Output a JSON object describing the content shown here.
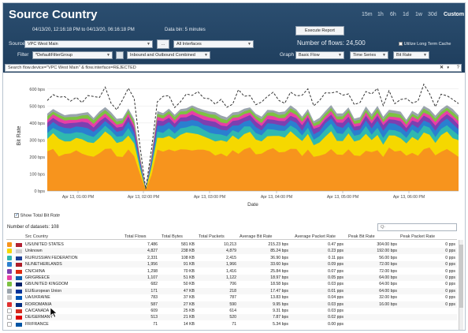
{
  "header": {
    "title": "Source Country",
    "date_range": "04/13/20, 12:16:18 PM to 04/13/20, 06:16:18 PM",
    "data_bin": "Data bin: 5 minutes",
    "time_ranges": [
      "15m",
      "1h",
      "6h",
      "1d",
      "1w",
      "30d",
      "Custom"
    ],
    "selected_time_range": "Custom",
    "execute_label": "Execute Report",
    "source_label": "Source",
    "source_value": "VPC West Main",
    "more_label": "...",
    "interfaces_value": "All Interfaces",
    "filter_label": "Filter",
    "filter_value": "*DefaultFilterGroup",
    "direction_value": "Inbound and Outbound Combined",
    "flows_label": "Number of flows: 24,500",
    "utilize_label": "Utilize Long Term Cache",
    "graph_label": "Graph",
    "graph_type": "Basic Flow",
    "graph_mode": "Time Series",
    "graph_metric": "Bit Rate",
    "search_text": "Search  flow.device=\"VPC West Main\" & flow.interface=REJECTED",
    "clear_icon": "close-icon",
    "help_label": "?"
  },
  "chart_data": {
    "type": "area",
    "ylabel": "Bit Rate",
    "xlabel": "Date",
    "y_ticks": [
      "0 bps",
      "100 bps",
      "200 bps",
      "300 bps",
      "400 bps",
      "500 bps",
      "600 bps"
    ],
    "ylim": [
      0,
      650
    ],
    "x_ticks": [
      "Apr 13, 01:00 PM",
      "Apr 13, 02:00 PM",
      "Apr 13, 03:00 PM",
      "Apr 13, 04:00 PM",
      "Apr 13, 05:00 PM",
      "Apr 13, 06:00 PM"
    ],
    "series": [
      {
        "name": "Orange",
        "color": "#f7941d"
      },
      {
        "name": "Yellow",
        "color": "#f5d800"
      },
      {
        "name": "Teal",
        "color": "#2fb8b0"
      },
      {
        "name": "Blue",
        "color": "#2a7fd0"
      },
      {
        "name": "Purple",
        "color": "#7d3fb0"
      },
      {
        "name": "Pink",
        "color": "#e83fa6"
      },
      {
        "name": "Green",
        "color": "#7dc242"
      },
      {
        "name": "Gray",
        "color": "#9aa4ad"
      },
      {
        "name": "Total",
        "color": "#333333",
        "dashed": true
      }
    ],
    "grid": true
  },
  "controls": {
    "show_total_label": "Show Total Bit Rate",
    "datasets_label": "Number of datasets: 108",
    "table_search_placeholder": "Q-"
  },
  "table": {
    "columns": [
      "Src Country",
      "Total Flows",
      "Total Bytes",
      "Total Packets",
      "Average Bit Rate",
      "Average Packet Rate",
      "Peak Bit Rate",
      "Peak Packet Rate"
    ],
    "rows": [
      {
        "country": "US/UNITED STATES",
        "flows": "7,486",
        "bytes": "581 KB",
        "packets": "10,213",
        "avg_bit": "215.23 bps",
        "avg_pkt": "0.47 pps",
        "peak_bit": "304.00 bps",
        "peak_pkt": "0 pps",
        "cb": "#f7941d",
        "flag": "#b22234"
      },
      {
        "country": "Unknown",
        "flows": "4,827",
        "bytes": "238 KB",
        "packets": "4,879",
        "avg_bit": "85.24 bps",
        "avg_pkt": "0.23 pps",
        "peak_bit": "192.00 bps",
        "peak_pkt": "0 pps",
        "cb": "#f5d800",
        "flag": "#cccccc"
      },
      {
        "country": "RU/RUSSIAN FEDERATION",
        "flows": "2,331",
        "bytes": "108 KB",
        "packets": "2,415",
        "avg_bit": "36.90 bps",
        "avg_pkt": "0.11 pps",
        "peak_bit": "56.00 bps",
        "peak_pkt": "0 pps",
        "cb": "#2fb8b0",
        "flag": "#1c3f94"
      },
      {
        "country": "NL/NETHERLANDS",
        "flows": "1,956",
        "bytes": "91 KB",
        "packets": "1,966",
        "avg_bit": "33.60 bps",
        "avg_pkt": "0.09 pps",
        "peak_bit": "72.00 bps",
        "peak_pkt": "0 pps",
        "cb": "#2a7fd0",
        "flag": "#ae1c28"
      },
      {
        "country": "CN/CHINA",
        "flows": "1,298",
        "bytes": "70 KB",
        "packets": "1,416",
        "avg_bit": "25.84 bps",
        "avg_pkt": "0.07 pps",
        "peak_bit": "72.00 bps",
        "peak_pkt": "0 pps",
        "cb": "#7d3fb0",
        "flag": "#de2910"
      },
      {
        "country": "GR/GREECE",
        "flows": "1,107",
        "bytes": "51 KB",
        "packets": "1,122",
        "avg_bit": "18.97 bps",
        "avg_pkt": "0.05 pps",
        "peak_bit": "64.00 bps",
        "peak_pkt": "0 pps",
        "cb": "#e83fa6",
        "flag": "#0d5eaf"
      },
      {
        "country": "GB/UNITED KINGDOM",
        "flows": "682",
        "bytes": "50 KB",
        "packets": "706",
        "avg_bit": "18.58 bps",
        "avg_pkt": "0.03 pps",
        "peak_bit": "64.00 bps",
        "peak_pkt": "0 pps",
        "cb": "#7dc242",
        "flag": "#012169"
      },
      {
        "country": "EU/European Union",
        "flows": "171",
        "bytes": "47 KB",
        "packets": "218",
        "avg_bit": "17.47 bps",
        "avg_pkt": "0.01 pps",
        "peak_bit": "64.00 bps",
        "peak_pkt": "0 pps",
        "cb": "#9aa4ad",
        "flag": "#003399"
      },
      {
        "country": "UA/UKRAINE",
        "flows": "783",
        "bytes": "37 KB",
        "packets": "787",
        "avg_bit": "13.83 bps",
        "avg_pkt": "0.04 pps",
        "peak_bit": "32.00 bps",
        "peak_pkt": "0 pps",
        "cb": "#c9c9c9",
        "flag": "#0057b7"
      },
      {
        "country": "RO/ROMANIA",
        "flows": "587",
        "bytes": "27 KB",
        "packets": "590",
        "avg_bit": "9.95 bps",
        "avg_pkt": "0.03 pps",
        "peak_bit": "16.00 bps",
        "peak_pkt": "0 pps",
        "cb": "#e03030",
        "flag": "#002b7f"
      },
      {
        "country": "CA/CANADA",
        "flows": "609",
        "bytes": "25 KB",
        "packets": "614",
        "avg_bit": "9.31 bps",
        "avg_pkt": "0.03 pps",
        "peak_bit": "",
        "peak_pkt": "",
        "cb": "",
        "flag": "#d52b1e"
      },
      {
        "country": "DE/GERMANY",
        "flows": "513",
        "bytes": "21 KB",
        "packets": "520",
        "avg_bit": "7.87 bps",
        "avg_pkt": "0.02 pps",
        "peak_bit": "",
        "peak_pkt": "",
        "cb": "",
        "flag": "#dd0000"
      },
      {
        "country": "FR/FRANCE",
        "flows": "71",
        "bytes": "14 KB",
        "packets": "71",
        "avg_bit": "5.34 bps",
        "avg_pkt": "0.00 pps",
        "peak_bit": "",
        "peak_pkt": "",
        "cb": "",
        "flag": "#0055a4"
      }
    ]
  }
}
